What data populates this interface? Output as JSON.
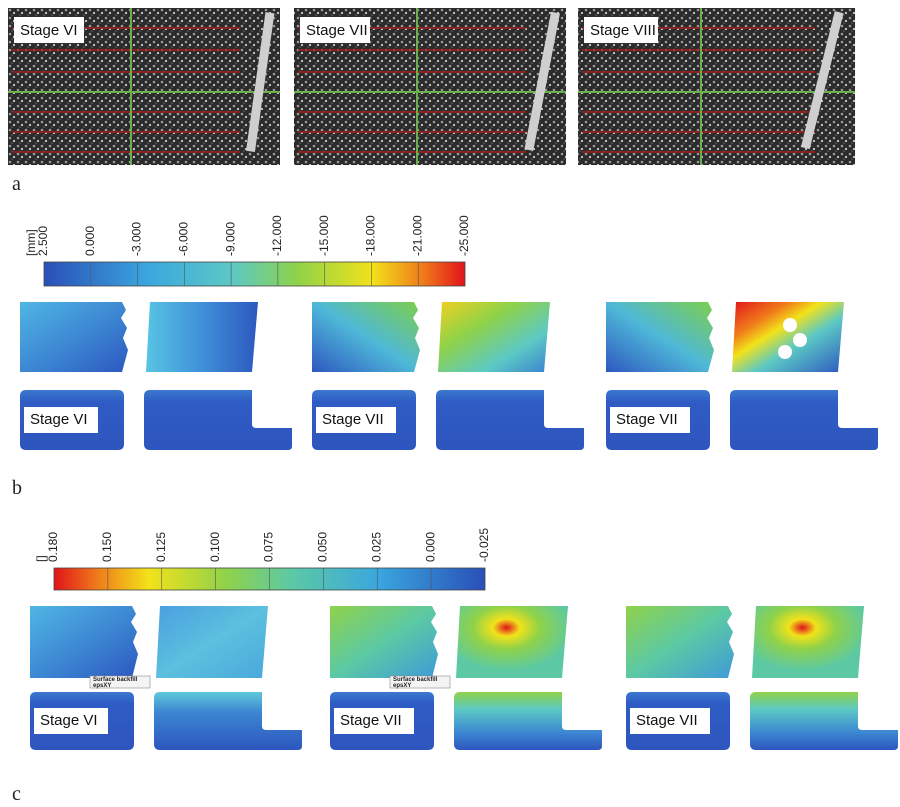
{
  "panels": [
    {
      "label": "a",
      "stages": [
        "Stage VI",
        "Stage VII",
        "Stage VIII"
      ]
    },
    {
      "label": "b",
      "colorbar": {
        "unit": "[mm]",
        "ticks": [
          "2.500",
          "0.000",
          "-3.000",
          "-6.000",
          "-9.000",
          "-12.000",
          "-15.000",
          "-18.000",
          "-21.000",
          "-25.000"
        ]
      },
      "stages": [
        "Stage VI",
        "Stage VII",
        "Stage VII"
      ]
    },
    {
      "label": "c",
      "colorbar": {
        "unit": "[]",
        "ticks": [
          "0.180",
          "0.150",
          "0.125",
          "0.100",
          "0.075",
          "0.050",
          "0.025",
          "0.000",
          "-0.025"
        ]
      },
      "stages": [
        "Stage VI",
        "Stage VII",
        "Stage VII"
      ],
      "annotations": [
        {
          "title": "Surface backfill",
          "sub": "epsXY"
        },
        {
          "title": "Surface backfill",
          "sub": "epsXY"
        }
      ]
    }
  ]
}
